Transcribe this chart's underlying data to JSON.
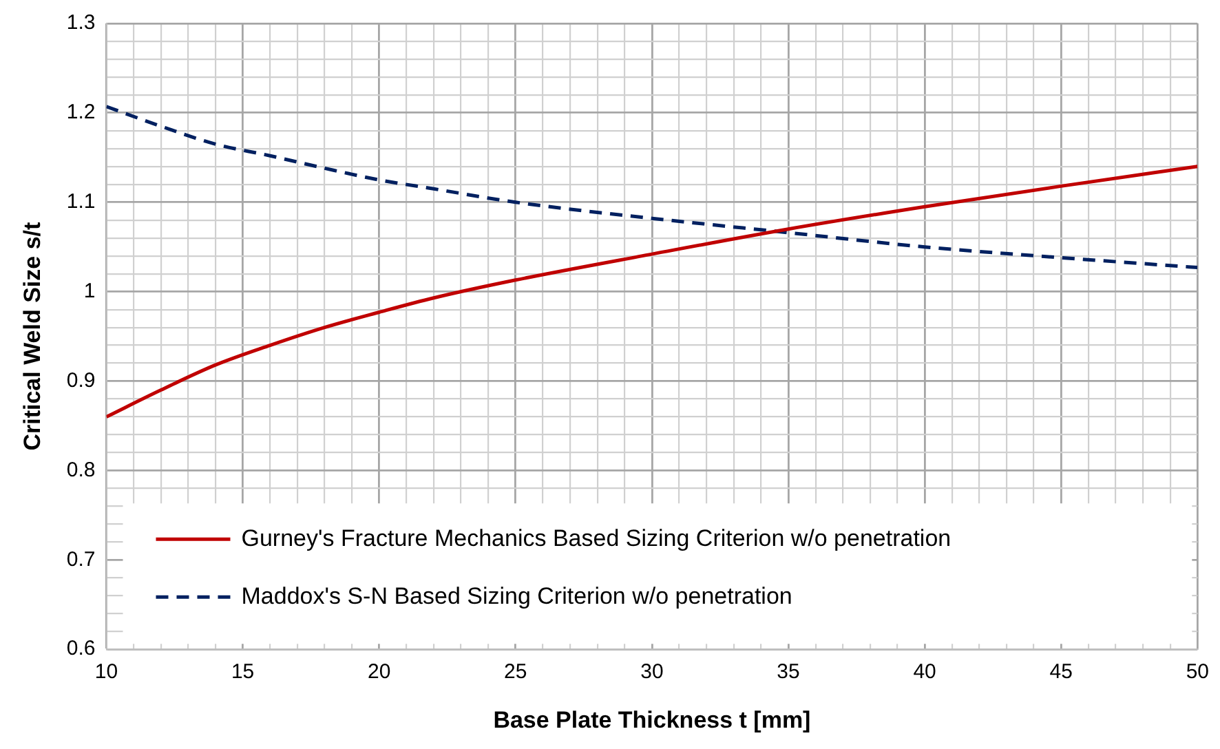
{
  "chart_data": {
    "type": "line",
    "xlabel": "Base Plate Thickness t [mm]",
    "ylabel": "Critical Weld Size s/t",
    "x": [
      10,
      12,
      14,
      16,
      18,
      20,
      22,
      25,
      30,
      35,
      40,
      45,
      50
    ],
    "series": [
      {
        "name": "Gurney's Fracture Mechanics Based Sizing Criterion w/o penetration",
        "color": "#c00000",
        "line_style": "solid",
        "values": [
          0.86,
          0.89,
          0.918,
          0.94,
          0.96,
          0.977,
          0.993,
          1.013,
          1.042,
          1.07,
          1.095,
          1.118,
          1.14
        ]
      },
      {
        "name": "Maddox's S-N Based Sizing Criterion w/o penetration",
        "color": "#002060",
        "line_style": "dashed",
        "values": [
          1.207,
          1.185,
          1.165,
          1.152,
          1.138,
          1.125,
          1.115,
          1.1,
          1.082,
          1.066,
          1.05,
          1.038,
          1.027
        ]
      }
    ],
    "xlim": [
      10,
      50
    ],
    "xticks": [
      10,
      {
        "value": 11,
        "label": null
      },
      {
        "value": 12,
        "label": null
      },
      {
        "value": 13,
        "label": null
      },
      {
        "value": 14,
        "label": null
      },
      15,
      {
        "value": 16,
        "label": null
      },
      {
        "value": 17,
        "label": null
      },
      {
        "value": 18,
        "label": null
      },
      {
        "value": 19,
        "label": null
      },
      20,
      {
        "value": 21,
        "label": null
      },
      {
        "value": 22,
        "label": null
      },
      {
        "value": 23,
        "label": null
      },
      {
        "value": 24,
        "label": null
      },
      25,
      {
        "value": 26,
        "label": null
      },
      {
        "value": 27,
        "label": null
      },
      {
        "value": 28,
        "label": null
      },
      {
        "value": 29,
        "label": null
      },
      30,
      {
        "value": 31,
        "label": null
      },
      {
        "value": 32,
        "label": null
      },
      {
        "value": 33,
        "label": null
      },
      {
        "value": 34,
        "label": null
      },
      35,
      {
        "value": 36,
        "label": null
      },
      {
        "value": 37,
        "label": null
      },
      {
        "value": 38,
        "label": null
      },
      {
        "value": 39,
        "label": null
      },
      40,
      {
        "value": 41,
        "label": null
      },
      {
        "value": 42,
        "label": null
      },
      {
        "value": 43,
        "label": null
      },
      {
        "value": 44,
        "label": null
      },
      45,
      {
        "value": 46,
        "label": null
      },
      {
        "value": 47,
        "label": null
      },
      {
        "value": 48,
        "label": null
      },
      {
        "value": 49,
        "label": null
      },
      50
    ],
    "ylim": [
      0.6,
      1.3
    ],
    "yticks": [
      0.6,
      {
        "value": 0.62,
        "label": null
      },
      {
        "value": 0.64,
        "label": null
      },
      {
        "value": 0.66,
        "label": null
      },
      {
        "value": 0.68,
        "label": null
      },
      0.7,
      {
        "value": 0.72,
        "label": null
      },
      {
        "value": 0.74,
        "label": null
      },
      {
        "value": 0.76,
        "label": null
      },
      {
        "value": 0.78,
        "label": null
      },
      0.8,
      {
        "value": 0.82,
        "label": null
      },
      {
        "value": 0.84,
        "label": null
      },
      {
        "value": 0.86,
        "label": null
      },
      {
        "value": 0.88,
        "label": null
      },
      0.9,
      {
        "value": 0.92,
        "label": null
      },
      {
        "value": 0.94,
        "label": null
      },
      {
        "value": 0.96,
        "label": null
      },
      {
        "value": 0.98,
        "label": null
      },
      1,
      {
        "value": 1.02,
        "label": null
      },
      {
        "value": 1.04,
        "label": null
      },
      {
        "value": 1.06,
        "label": null
      },
      {
        "value": 1.08,
        "label": null
      },
      1.1,
      {
        "value": 1.12,
        "label": null
      },
      {
        "value": 1.14,
        "label": null
      },
      {
        "value": 1.16,
        "label": null
      },
      {
        "value": 1.18,
        "label": null
      },
      1.2,
      {
        "value": 1.22,
        "label": null
      },
      {
        "value": 1.24,
        "label": null
      },
      {
        "value": 1.26,
        "label": null
      },
      {
        "value": 1.28,
        "label": null
      },
      1.3
    ],
    "grid": true,
    "legend": "bottom",
    "marker": "none"
  }
}
